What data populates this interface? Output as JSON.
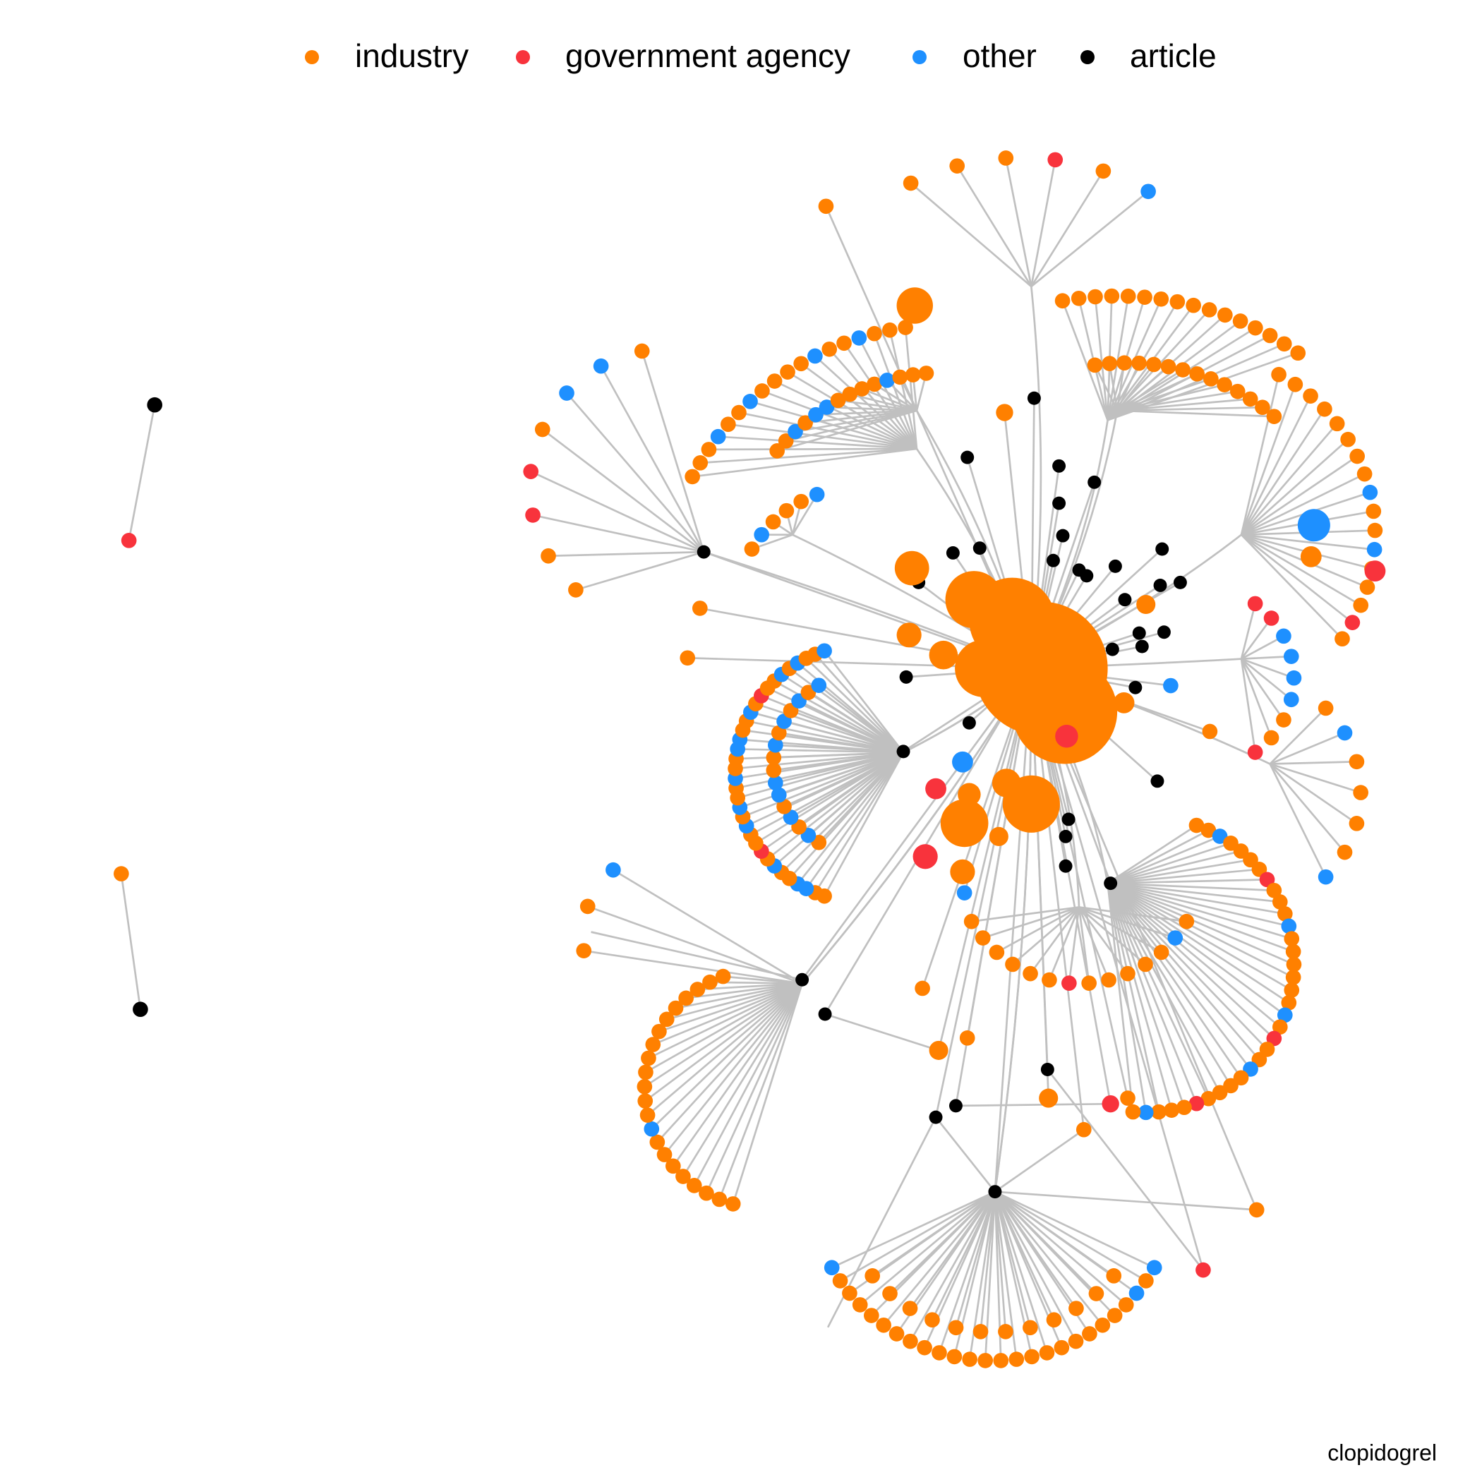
{
  "legend": {
    "items": [
      {
        "label": "industry",
        "color": "#ff8000"
      },
      {
        "label": "government agency",
        "color": "#f8333c"
      },
      {
        "label": "other",
        "color": "#1e90ff"
      },
      {
        "label": "article",
        "color": "#000000"
      }
    ]
  },
  "caption": "clopidogrel"
}
